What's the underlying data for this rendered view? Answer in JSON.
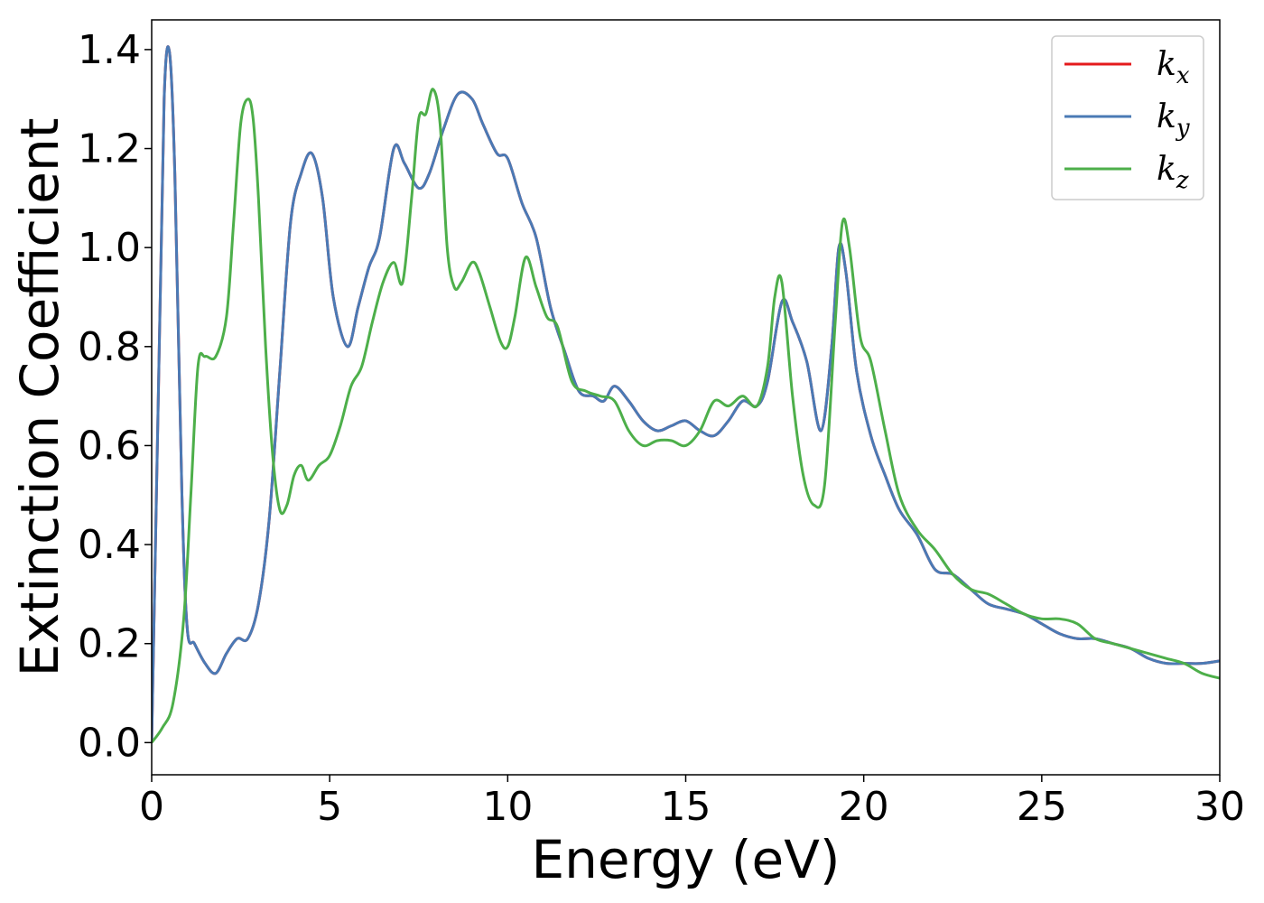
{
  "chart_data": {
    "type": "line",
    "title": "",
    "xlabel": "Energy (eV)",
    "ylabel": "Extinction Coefficient",
    "xlim": [
      0,
      30
    ],
    "ylim": [
      -0.065,
      1.46
    ],
    "xticks": [
      0,
      5,
      10,
      15,
      20,
      25,
      30
    ],
    "xtick_labels": [
      "0",
      "5",
      "10",
      "15",
      "20",
      "25",
      "30"
    ],
    "yticks": [
      0.0,
      0.2,
      0.4,
      0.6,
      0.8,
      1.0,
      1.2,
      1.4
    ],
    "ytick_labels": [
      "0.0",
      "0.2",
      "0.4",
      "0.6",
      "0.8",
      "1.0",
      "1.2",
      "1.4"
    ],
    "grid": false,
    "legend_position": "top-right",
    "series": [
      {
        "name": "k",
        "subscript": "x",
        "color": "#e41a1c",
        "x": [
          0,
          0.2,
          0.35,
          0.5,
          0.65,
          0.85,
          1.0,
          1.2,
          1.5,
          1.8,
          2.1,
          2.4,
          2.7,
          3.0,
          3.3,
          3.6,
          3.9,
          4.2,
          4.5,
          4.8,
          5.1,
          5.5,
          5.8,
          6.1,
          6.4,
          6.8,
          7.1,
          7.5,
          7.8,
          8.2,
          8.6,
          9.0,
          9.3,
          9.7,
          10.0,
          10.4,
          10.8,
          11.2,
          11.6,
          12.0,
          12.4,
          12.7,
          13.0,
          13.4,
          13.8,
          14.2,
          14.6,
          15.0,
          15.4,
          15.8,
          16.2,
          16.6,
          17.0,
          17.3,
          17.7,
          18.0,
          18.4,
          18.8,
          19.1,
          19.3,
          19.5,
          19.8,
          20.2,
          20.6,
          21.0,
          21.5,
          22.0,
          22.5,
          23.0,
          23.5,
          24.0,
          24.5,
          25.0,
          25.5,
          26.0,
          26.5,
          27.0,
          27.5,
          28.0,
          28.5,
          29.0,
          29.5,
          30.0
        ],
        "y": [
          0.0,
          0.75,
          1.3,
          1.395,
          1.15,
          0.5,
          0.23,
          0.2,
          0.16,
          0.14,
          0.18,
          0.21,
          0.21,
          0.28,
          0.45,
          0.75,
          1.05,
          1.15,
          1.19,
          1.1,
          0.9,
          0.8,
          0.88,
          0.96,
          1.02,
          1.2,
          1.17,
          1.12,
          1.15,
          1.24,
          1.31,
          1.3,
          1.25,
          1.19,
          1.18,
          1.09,
          1.02,
          0.88,
          0.79,
          0.71,
          0.7,
          0.69,
          0.72,
          0.69,
          0.65,
          0.63,
          0.64,
          0.65,
          0.63,
          0.62,
          0.65,
          0.69,
          0.68,
          0.73,
          0.89,
          0.85,
          0.77,
          0.63,
          0.8,
          1.0,
          0.95,
          0.75,
          0.62,
          0.54,
          0.47,
          0.42,
          0.35,
          0.34,
          0.31,
          0.28,
          0.27,
          0.26,
          0.24,
          0.22,
          0.21,
          0.21,
          0.2,
          0.19,
          0.17,
          0.16,
          0.16,
          0.16,
          0.165
        ]
      },
      {
        "name": "k",
        "subscript": "y",
        "color": "#4a7ab5",
        "x": [
          0,
          0.2,
          0.35,
          0.5,
          0.65,
          0.85,
          1.0,
          1.2,
          1.5,
          1.8,
          2.1,
          2.4,
          2.7,
          3.0,
          3.3,
          3.6,
          3.9,
          4.2,
          4.5,
          4.8,
          5.1,
          5.5,
          5.8,
          6.1,
          6.4,
          6.8,
          7.1,
          7.5,
          7.8,
          8.2,
          8.6,
          9.0,
          9.3,
          9.7,
          10.0,
          10.4,
          10.8,
          11.2,
          11.6,
          12.0,
          12.4,
          12.7,
          13.0,
          13.4,
          13.8,
          14.2,
          14.6,
          15.0,
          15.4,
          15.8,
          16.2,
          16.6,
          17.0,
          17.3,
          17.7,
          18.0,
          18.4,
          18.8,
          19.1,
          19.3,
          19.5,
          19.8,
          20.2,
          20.6,
          21.0,
          21.5,
          22.0,
          22.5,
          23.0,
          23.5,
          24.0,
          24.5,
          25.0,
          25.5,
          26.0,
          26.5,
          27.0,
          27.5,
          28.0,
          28.5,
          29.0,
          29.5,
          30.0
        ],
        "y": [
          0.0,
          0.75,
          1.3,
          1.395,
          1.15,
          0.5,
          0.23,
          0.2,
          0.16,
          0.14,
          0.18,
          0.21,
          0.21,
          0.28,
          0.45,
          0.75,
          1.05,
          1.15,
          1.19,
          1.1,
          0.9,
          0.8,
          0.88,
          0.96,
          1.02,
          1.2,
          1.17,
          1.12,
          1.15,
          1.24,
          1.31,
          1.3,
          1.25,
          1.19,
          1.18,
          1.09,
          1.02,
          0.88,
          0.79,
          0.71,
          0.7,
          0.69,
          0.72,
          0.69,
          0.65,
          0.63,
          0.64,
          0.65,
          0.63,
          0.62,
          0.65,
          0.69,
          0.68,
          0.73,
          0.89,
          0.85,
          0.77,
          0.63,
          0.8,
          1.0,
          0.95,
          0.75,
          0.62,
          0.54,
          0.47,
          0.42,
          0.35,
          0.34,
          0.31,
          0.28,
          0.27,
          0.26,
          0.24,
          0.22,
          0.21,
          0.21,
          0.2,
          0.19,
          0.17,
          0.16,
          0.16,
          0.16,
          0.165
        ]
      },
      {
        "name": "k",
        "subscript": "z",
        "color": "#4daf4a",
        "x": [
          0,
          0.3,
          0.6,
          0.9,
          1.1,
          1.3,
          1.5,
          1.8,
          2.1,
          2.3,
          2.5,
          2.7,
          2.85,
          3.0,
          3.2,
          3.4,
          3.6,
          3.8,
          4.0,
          4.2,
          4.4,
          4.7,
          5.0,
          5.3,
          5.6,
          5.9,
          6.2,
          6.5,
          6.8,
          7.05,
          7.3,
          7.5,
          7.7,
          7.9,
          8.1,
          8.3,
          8.5,
          8.7,
          9.0,
          9.2,
          9.5,
          9.8,
          10.0,
          10.2,
          10.5,
          10.8,
          11.1,
          11.4,
          11.8,
          12.2,
          12.6,
          13.0,
          13.4,
          13.8,
          14.2,
          14.6,
          15.0,
          15.4,
          15.8,
          16.2,
          16.6,
          17.0,
          17.3,
          17.5,
          17.7,
          18.0,
          18.3,
          18.6,
          18.9,
          19.2,
          19.4,
          19.6,
          19.9,
          20.2,
          20.6,
          21.0,
          21.5,
          22.0,
          22.5,
          23.0,
          23.5,
          24.0,
          24.5,
          25.0,
          25.5,
          26.0,
          26.5,
          27.0,
          27.5,
          28.0,
          28.5,
          29.0,
          29.5,
          30.0
        ],
        "y": [
          0.0,
          0.03,
          0.08,
          0.25,
          0.5,
          0.76,
          0.78,
          0.78,
          0.86,
          1.05,
          1.25,
          1.3,
          1.26,
          1.1,
          0.8,
          0.58,
          0.47,
          0.48,
          0.54,
          0.56,
          0.53,
          0.56,
          0.58,
          0.64,
          0.72,
          0.76,
          0.85,
          0.93,
          0.97,
          0.93,
          1.1,
          1.26,
          1.27,
          1.32,
          1.25,
          1.0,
          0.92,
          0.93,
          0.97,
          0.95,
          0.88,
          0.81,
          0.8,
          0.86,
          0.98,
          0.92,
          0.86,
          0.84,
          0.73,
          0.71,
          0.7,
          0.69,
          0.63,
          0.6,
          0.61,
          0.61,
          0.6,
          0.63,
          0.69,
          0.68,
          0.7,
          0.68,
          0.76,
          0.9,
          0.93,
          0.7,
          0.54,
          0.48,
          0.52,
          0.85,
          1.05,
          1.0,
          0.82,
          0.77,
          0.63,
          0.5,
          0.43,
          0.39,
          0.34,
          0.31,
          0.3,
          0.28,
          0.26,
          0.25,
          0.25,
          0.24,
          0.21,
          0.2,
          0.19,
          0.18,
          0.17,
          0.16,
          0.14,
          0.13
        ]
      }
    ]
  }
}
